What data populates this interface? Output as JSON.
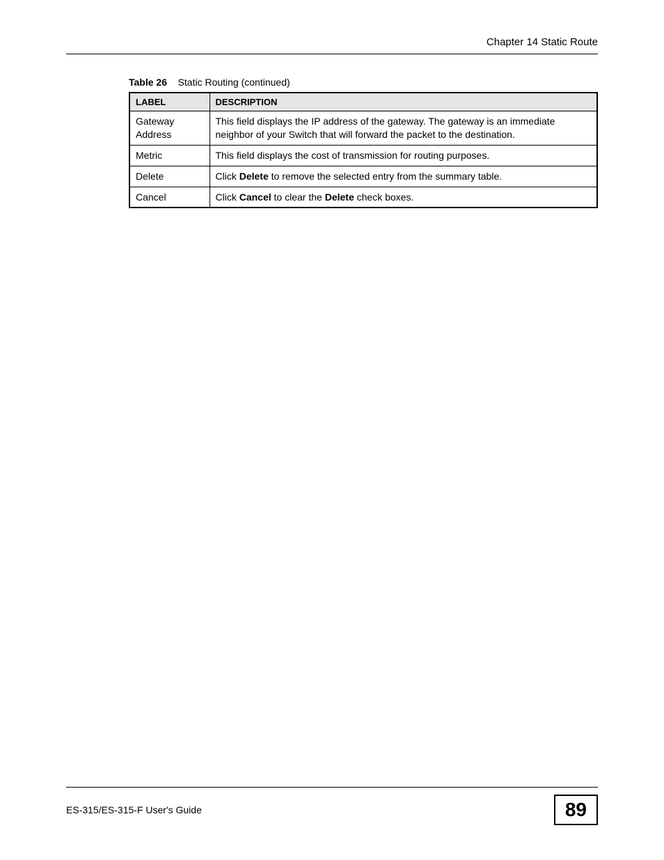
{
  "header": {
    "chapter_title": "Chapter 14 Static Route"
  },
  "table_caption": {
    "prefix": "Table 26",
    "title": "Static Routing  (continued)"
  },
  "table": {
    "columns": [
      "LABEL",
      "DESCRIPTION"
    ],
    "rows": [
      {
        "label": "Gateway Address",
        "description_parts": [
          {
            "text": "This field displays the IP address of the gateway. The gateway is an immediate neighbor of your Switch that will forward the packet to the destination.",
            "bold": false
          }
        ]
      },
      {
        "label": "Metric",
        "description_parts": [
          {
            "text": "This field displays the cost of transmission for routing purposes.",
            "bold": false
          }
        ]
      },
      {
        "label": "Delete",
        "description_parts": [
          {
            "text": "Click ",
            "bold": false
          },
          {
            "text": "Delete",
            "bold": true
          },
          {
            "text": " to remove the selected entry from the summary table.",
            "bold": false
          }
        ]
      },
      {
        "label": "Cancel",
        "description_parts": [
          {
            "text": "Click ",
            "bold": false
          },
          {
            "text": "Cancel",
            "bold": true
          },
          {
            "text": " to clear the ",
            "bold": false
          },
          {
            "text": "Delete",
            "bold": true
          },
          {
            "text": " check boxes.",
            "bold": false
          }
        ]
      }
    ]
  },
  "footer": {
    "guide_title": "ES-315/ES-315-F User's Guide",
    "page_number": "89"
  },
  "colors": {
    "text": "#000000",
    "header_bg": "#e5e5e5",
    "background": "#ffffff",
    "border": "#000000"
  }
}
